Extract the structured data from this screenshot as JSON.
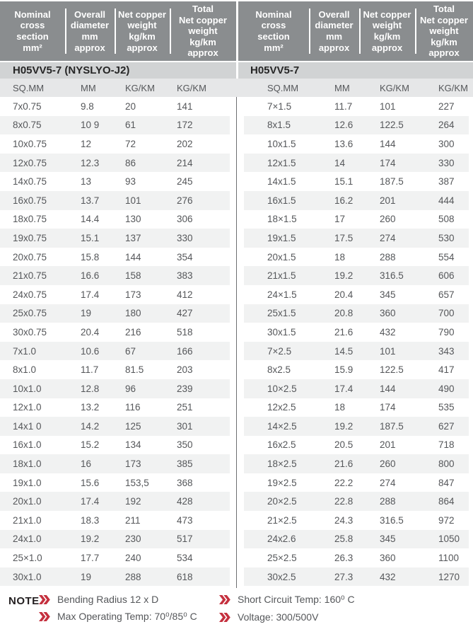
{
  "header_columns": [
    "Nominal\ncross\nsection\nmm²",
    "Overall\ndiameter\nmm\napprox",
    "Net copper\nweight\nkg/km\napprox",
    "Total\nNet copper\nweight\nkg/km\napprox"
  ],
  "tables": [
    {
      "section_title": "H05VV5-7 (NYSLYO-J2)",
      "unit_row": [
        "SQ.MM",
        "MM",
        "KG/KM",
        "KG/KM"
      ],
      "rows": [
        [
          "7x0.75",
          "9.8",
          "20",
          "141"
        ],
        [
          "8x0.75",
          "10 9",
          "61",
          "172"
        ],
        [
          "10x0.75",
          "12",
          "72",
          "202"
        ],
        [
          "12x0.75",
          "12.3",
          "86",
          "214"
        ],
        [
          "14x0.75",
          "13",
          "93",
          "245"
        ],
        [
          "16x0.75",
          "13.7",
          "101",
          "276"
        ],
        [
          "18x0.75",
          "14.4",
          "130",
          "306"
        ],
        [
          "19x0.75",
          "15.1",
          "137",
          "330"
        ],
        [
          "20x0.75",
          "15.8",
          "144",
          "354"
        ],
        [
          "21x0.75",
          "16.6",
          "158",
          "383"
        ],
        [
          "24x0.75",
          "17.4",
          "173",
          "412"
        ],
        [
          "25x0.75",
          "19",
          "180",
          "427"
        ],
        [
          "30x0.75",
          "20.4",
          "216",
          "518"
        ],
        [
          "7x1.0",
          "10.6",
          "67",
          "166"
        ],
        [
          "8x1.0",
          "11.7",
          "81.5",
          "203"
        ],
        [
          "10x1.0",
          "12.8",
          "96",
          "239"
        ],
        [
          "12x1.0",
          "13.2",
          "116",
          "251"
        ],
        [
          "14x1 0",
          "14.2",
          "125",
          "301"
        ],
        [
          "16x1.0",
          "15.2",
          "134",
          "350"
        ],
        [
          "18x1.0",
          "16",
          "173",
          "385"
        ],
        [
          "19x1.0",
          "15.6",
          "153,5",
          "368"
        ],
        [
          "20x1.0",
          "17.4",
          "192",
          "428"
        ],
        [
          "21x1.0",
          "18.3",
          "211",
          "473"
        ],
        [
          "24x1.0",
          "19.2",
          "230",
          "517"
        ],
        [
          "25×1.0",
          "17.7",
          "240",
          "534"
        ],
        [
          "30x1.0",
          "19",
          "288",
          "618"
        ]
      ]
    },
    {
      "section_title": "H05VV5-7",
      "unit_row": [
        "SQ.MM",
        "MM",
        "KG/KM",
        "KG/KM"
      ],
      "rows": [
        [
          "7×1.5",
          "11.7",
          "101",
          "227"
        ],
        [
          "8x1.5",
          "12.6",
          "122.5",
          "264"
        ],
        [
          "10x1.5",
          "13.6",
          "144",
          "300"
        ],
        [
          "12x1.5",
          "14",
          "174",
          "330"
        ],
        [
          "14x1.5",
          "15.1",
          "187.5",
          "387"
        ],
        [
          "16x1.5",
          "16.2",
          "201",
          "444"
        ],
        [
          "18×1.5",
          "17",
          "260",
          "508"
        ],
        [
          "19x1.5",
          "17.5",
          "274",
          "530"
        ],
        [
          "20x1.5",
          "18",
          "288",
          "554"
        ],
        [
          "21x1.5",
          "19.2",
          "316.5",
          "606"
        ],
        [
          "24×1.5",
          "20.4",
          "345",
          "657"
        ],
        [
          "25x1.5",
          "20.8",
          "360",
          "700"
        ],
        [
          "30x1.5",
          "21.6",
          "432",
          "790"
        ],
        [
          "7×2.5",
          "14.5",
          "101",
          "343"
        ],
        [
          "8x2.5",
          "15.9",
          "122.5",
          "417"
        ],
        [
          "10×2.5",
          "17.4",
          "144",
          "490"
        ],
        [
          "12x2.5",
          "18",
          "174",
          "535"
        ],
        [
          "14×2.5",
          "19.2",
          "187.5",
          "627"
        ],
        [
          "16x2.5",
          "20.5",
          "201",
          "718"
        ],
        [
          "18×2.5",
          "21.6",
          "260",
          "800"
        ],
        [
          "19×2.5",
          "22.2",
          "274",
          "847"
        ],
        [
          "20×2.5",
          "22.8",
          "288",
          "864"
        ],
        [
          "21×2.5",
          "24.3",
          "316.5",
          "972"
        ],
        [
          "24x2.6",
          "25.8",
          "345",
          "1050"
        ],
        [
          "25×2.5",
          "26.3",
          "360",
          "1100"
        ],
        [
          "30x2.5",
          "27.3",
          "432",
          "1270"
        ]
      ]
    }
  ],
  "note": {
    "label": "NOTE",
    "items_left": [
      "Bending Radius 12 x D",
      "Max Operating Temp: 70⁰/85⁰ C"
    ],
    "items_right": [
      "Short Circuit Temp: 160⁰ C",
      "Voltage: 300/500V"
    ]
  },
  "icons": {
    "note_bullet": "double-chevron-right"
  },
  "colors": {
    "header_bg": "#8a8d8f",
    "section_bg": "#d1d3d4",
    "unit_bg": "#e6e7e8",
    "stripe_bg": "#f1f2f2",
    "body_text": "#55575a",
    "accent_red": "#c5303e"
  }
}
